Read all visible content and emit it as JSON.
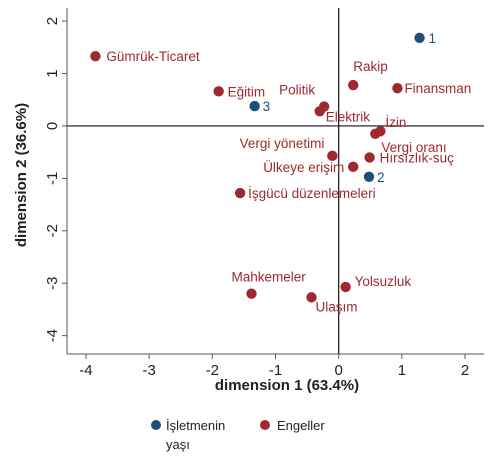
{
  "chart_data": {
    "type": "scatter",
    "xlabel": "dimension 1 (63.4%)",
    "ylabel": "dimension 2 (36.6%)",
    "xlim": [
      -4.3,
      2.3
    ],
    "ylim": [
      -4.35,
      2.25
    ],
    "xticks": [
      -4,
      -3,
      -2,
      -1,
      0,
      1,
      2
    ],
    "yticks": [
      -4,
      -3,
      -2,
      -1,
      0,
      1,
      2
    ],
    "grid": false,
    "reference_lines": {
      "x": 0,
      "y": 0
    },
    "legend": {
      "placement": "bottom",
      "entries": [
        "İşletmenin yaşı",
        "Engeller"
      ]
    },
    "series": [
      {
        "name": "İşletmenin yaşı",
        "color": "#1f4e79",
        "points": [
          {
            "label": "1",
            "x": 1.28,
            "y": 1.68
          },
          {
            "label": "2",
            "x": 0.48,
            "y": -0.97
          },
          {
            "label": "3",
            "x": -1.33,
            "y": 0.38
          }
        ]
      },
      {
        "name": "Engeller",
        "color": "#9e2a2f",
        "points": [
          {
            "label": "Gümrük-Ticaret",
            "x": -3.85,
            "y": 1.33
          },
          {
            "label": "Eğitim",
            "x": -1.9,
            "y": 0.66
          },
          {
            "label": "Politik",
            "x": -0.23,
            "y": 0.37
          },
          {
            "label": "Rakip",
            "x": 0.23,
            "y": 0.78
          },
          {
            "label": "Finansman",
            "x": 0.93,
            "y": 0.72
          },
          {
            "label": "Elektrik",
            "x": -0.3,
            "y": 0.28
          },
          {
            "label": "İzin",
            "x": 0.66,
            "y": -0.1
          },
          {
            "label": "Vergi oranı",
            "x": 0.58,
            "y": -0.15
          },
          {
            "label": "Vergi yönetimi",
            "x": -0.1,
            "y": -0.57
          },
          {
            "label": "Hırsızlık-suç",
            "x": 0.49,
            "y": -0.6
          },
          {
            "label": "Ülkeye erişim",
            "x": 0.23,
            "y": -0.78
          },
          {
            "label": "İşgücü düzenlemeleri",
            "x": -1.56,
            "y": -1.28
          },
          {
            "label": "Yolsuzluk",
            "x": 0.11,
            "y": -3.07
          },
          {
            "label": "Mahkemeler",
            "x": -1.38,
            "y": -3.2
          },
          {
            "label": "Ulaşım",
            "x": -0.43,
            "y": -3.27
          }
        ]
      }
    ]
  },
  "legend_labels": {
    "age_line1": "İşletmenin",
    "age_line2": "yaşı",
    "obstacles": "Engeller"
  }
}
